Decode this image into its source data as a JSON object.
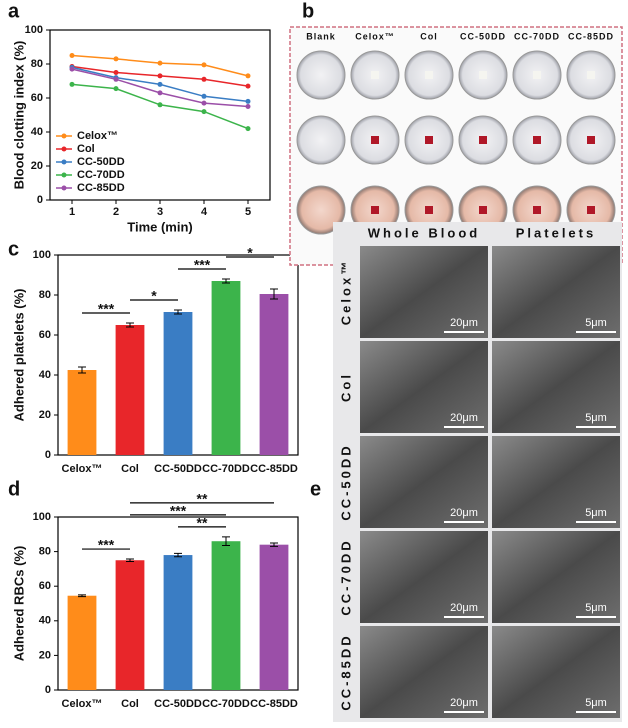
{
  "chart_data": [
    {
      "type": "line",
      "label": "a",
      "xlabel": "Time (min)",
      "ylabel": "Blood clotting index (%)",
      "x": [
        1,
        2,
        3,
        4,
        5
      ],
      "xlim": [
        0.5,
        5.5
      ],
      "xticks": [
        1,
        2,
        3,
        4,
        5
      ],
      "ylim": [
        0,
        100
      ],
      "yticks": [
        0,
        20,
        40,
        60,
        80,
        100
      ],
      "legend": "lower left",
      "series": [
        {
          "name": "Celox™",
          "color": "#ff8c1a",
          "values": [
            85,
            83,
            80.5,
            79.5,
            73
          ]
        },
        {
          "name": "Col",
          "color": "#e8262a",
          "values": [
            78.5,
            75,
            73,
            71,
            67
          ]
        },
        {
          "name": "CC-50DD",
          "color": "#3a7dc4",
          "values": [
            78,
            72,
            68,
            61,
            58
          ]
        },
        {
          "name": "CC-70DD",
          "color": "#3cb44b",
          "values": [
            68,
            65.5,
            56,
            52,
            42
          ]
        },
        {
          "name": "CC-85DD",
          "color": "#9b4fa8",
          "values": [
            77,
            71,
            63,
            57,
            55
          ]
        }
      ]
    },
    {
      "type": "bar",
      "label": "c",
      "ylabel": "Adhered platelets (%)",
      "categories": [
        "Celox™",
        "Col",
        "CC-50DD",
        "CC-70DD",
        "CC-85DD"
      ],
      "values": [
        42.5,
        65,
        71.5,
        87,
        80.5
      ],
      "errors": [
        1.5,
        1,
        1,
        1,
        2.5
      ],
      "colors": [
        "#ff8c1a",
        "#e8262a",
        "#3a7dc4",
        "#3cb44b",
        "#9b4fa8"
      ],
      "ylim": [
        0,
        100
      ],
      "yticks": [
        0,
        20,
        40,
        60,
        80,
        100
      ],
      "significance": [
        {
          "between": [
            "Celox™",
            "Col"
          ],
          "label": "***"
        },
        {
          "between": [
            "Col",
            "CC-50DD"
          ],
          "label": "*"
        },
        {
          "between": [
            "CC-50DD",
            "CC-70DD"
          ],
          "label": "***"
        },
        {
          "between": [
            "CC-70DD",
            "CC-85DD"
          ],
          "label": "*"
        }
      ]
    },
    {
      "type": "bar",
      "label": "d",
      "ylabel": "Adhered RBCs (%)",
      "categories": [
        "Celox™",
        "Col",
        "CC-50DD",
        "CC-70DD",
        "CC-85DD"
      ],
      "values": [
        54.5,
        75,
        78,
        86,
        84
      ],
      "errors": [
        0.5,
        0.7,
        1,
        2.5,
        1
      ],
      "colors": [
        "#ff8c1a",
        "#e8262a",
        "#3a7dc4",
        "#3cb44b",
        "#9b4fa8"
      ],
      "ylim": [
        0,
        100
      ],
      "yticks": [
        0,
        20,
        40,
        60,
        80,
        100
      ],
      "significance": [
        {
          "between": [
            "Celox™",
            "Col"
          ],
          "label": "***"
        },
        {
          "between": [
            "CC-50DD",
            "CC-70DD"
          ],
          "label": "**"
        },
        {
          "between": [
            "Col",
            "CC-70DD"
          ],
          "label": "***"
        },
        {
          "between": [
            "Col",
            "CC-85DD"
          ],
          "label": "**"
        }
      ]
    }
  ],
  "photos_b": {
    "label": "b",
    "columns": [
      "Blank",
      "Celox™",
      "Col",
      "CC-50DD",
      "CC-70DD",
      "CC-85DD"
    ]
  },
  "photos_e": {
    "label": "e",
    "columns": [
      "Whole Blood",
      "Platelets"
    ],
    "rows": [
      {
        "name": "Celox™",
        "scale_bars": [
          "20μm",
          "5μm"
        ]
      },
      {
        "name": "Col",
        "scale_bars": [
          "20μm",
          "5μm"
        ]
      },
      {
        "name": "CC-50DD",
        "scale_bars": [
          "20μm",
          "5μm"
        ]
      },
      {
        "name": "CC-70DD",
        "scale_bars": [
          "20μm",
          "5μm"
        ]
      },
      {
        "name": "CC-85DD",
        "scale_bars": [
          "20μm",
          "5μm"
        ]
      }
    ]
  }
}
